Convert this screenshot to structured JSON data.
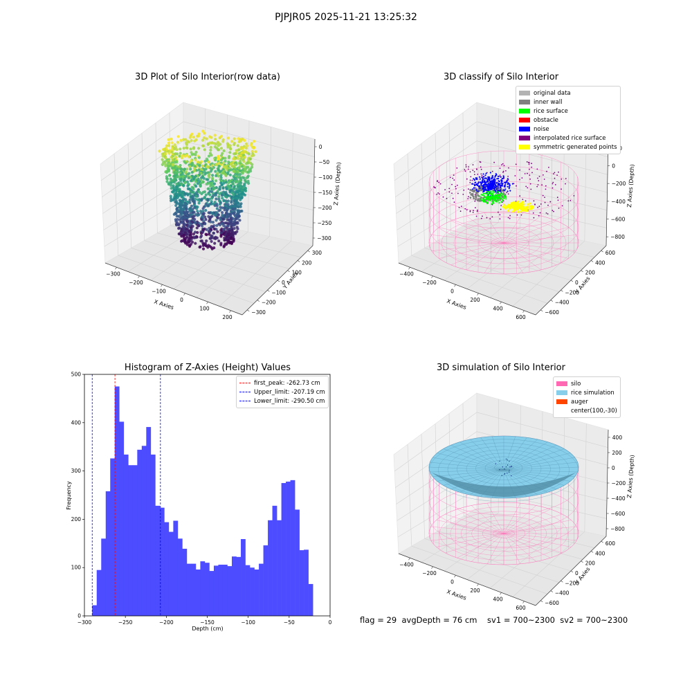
{
  "figure_title": "PJPJR05 2025-11-21 13:25:32",
  "footer": "flag = 29  avgDepth = 76 cm    sv1 = 700~2300  sv2 = 700~2300",
  "colors": {
    "silo": "#ff69b4",
    "rice_simulation": "#87ceeb",
    "auger": "#ff4500",
    "original_data": "#b3b3b3",
    "inner_wall": "#808080",
    "rice_surface": "#00ff00",
    "obstacle": "#ff0000",
    "noise": "#0000ff",
    "interpolated_rice_surface": "#800080",
    "symmetric_generated_points": "#ffff00",
    "histogram_bar": "#4d4dff"
  },
  "chart_data": [
    {
      "type": "scatter",
      "projection": "3d",
      "title": "3D Plot of Silo Interior(row data)",
      "xlabel": "X Axies",
      "ylabel": "Y Axies",
      "zlabel": "Z Axies (Depth)",
      "xticks": [
        "−300",
        "−200",
        "−100",
        "0",
        "100",
        "200"
      ],
      "yticks": [
        "−300",
        "−200",
        "−100",
        "0",
        "100",
        "200",
        "300"
      ],
      "zticks": [
        "0",
        "−50",
        "−100",
        "−150",
        "−200",
        "−250",
        "−300"
      ],
      "colormap": "viridis"
    },
    {
      "type": "scatter",
      "projection": "3d",
      "title": "3D classify of Silo Interior",
      "xlabel": "X Axies",
      "ylabel": "Y Axies",
      "zlabel": "Z Axies (Depth)",
      "xticks": [
        "−400",
        "−200",
        "0",
        "200",
        "400",
        "600"
      ],
      "yticks": [
        "−600",
        "−400",
        "−200",
        "0",
        "200",
        "400",
        "600"
      ],
      "zticks": [
        "200",
        "0",
        "−200",
        "−400",
        "−600",
        "−800"
      ],
      "z_top_tick": "200",
      "legend": [
        {
          "label": "original data",
          "color": "#b3b3b3"
        },
        {
          "label": "inner wall",
          "color": "#808080"
        },
        {
          "label": "rice surface",
          "color": "#00ff00"
        },
        {
          "label": "obstacle",
          "color": "#ff0000"
        },
        {
          "label": "noise",
          "color": "#0000ff"
        },
        {
          "label": "interpolated rice surface",
          "color": "#800080"
        },
        {
          "label": "symmetric generated points",
          "color": "#ffff00"
        }
      ],
      "legend_position": "top-right"
    },
    {
      "type": "bar",
      "title": "Histogram of Z-Axies (Height) Values",
      "xlabel": "Depth (cm)",
      "ylabel": "Frequency",
      "xlim": [
        -300,
        0
      ],
      "ylim": [
        0,
        500
      ],
      "xticks": [
        "−300",
        "−250",
        "−200",
        "−150",
        "−100",
        "−50",
        "0"
      ],
      "xtick_values": [
        -300,
        -250,
        -200,
        -150,
        -100,
        -50,
        0
      ],
      "yticks": [
        "0",
        "100",
        "200",
        "300",
        "400",
        "500"
      ],
      "ytick_values": [
        0,
        100,
        200,
        300,
        400,
        500
      ],
      "bin_start": -290.5,
      "bin_width": 5.5,
      "values": [
        22,
        95,
        160,
        258,
        326,
        475,
        402,
        334,
        312,
        312,
        344,
        352,
        391,
        334,
        228,
        224,
        194,
        174,
        197,
        160,
        139,
        108,
        108,
        96,
        113,
        110,
        93,
        104,
        106,
        106,
        103,
        123,
        122,
        159,
        105,
        100,
        96,
        108,
        146,
        198,
        228,
        198,
        275,
        278,
        281,
        220,
        136,
        137,
        66
      ],
      "lines": [
        {
          "label": "first_peak: -262.73 cm",
          "x": -262.73,
          "color": "#ff0000"
        },
        {
          "label": "Upper_limit: -207.19 cm",
          "x": -207.19,
          "color": "#0000ff"
        },
        {
          "label": "Lower_limit: -290.50 cm",
          "x": -290.5,
          "color": "#0000ff"
        }
      ],
      "legend_position": "top-right"
    },
    {
      "type": "scatter",
      "projection": "3d",
      "title": "3D simulation of Silo Interior",
      "xlabel": "X Axies",
      "ylabel": "Y Axies",
      "zlabel": "Z Axies (Depth)",
      "xticks": [
        "−400",
        "−200",
        "0",
        "200",
        "400",
        "600"
      ],
      "yticks": [
        "−600",
        "−400",
        "−200",
        "0",
        "200",
        "400",
        "600"
      ],
      "zticks": [
        "400",
        "200",
        "0",
        "−200",
        "−400",
        "−600",
        "−800"
      ],
      "legend": [
        {
          "label": "silo",
          "color": "#ff69b4"
        },
        {
          "label": "rice simulation",
          "color": "#87ceeb"
        },
        {
          "label": "auger",
          "color": "#ff4500"
        },
        {
          "label": "center(100,-30)",
          "color": ""
        }
      ],
      "legend_position": "top-right"
    }
  ]
}
